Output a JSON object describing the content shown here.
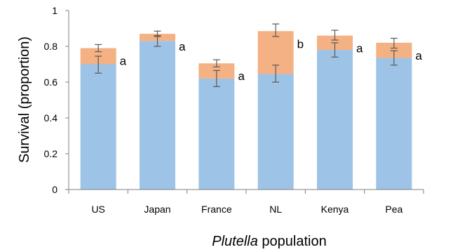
{
  "chart_data": {
    "type": "bar",
    "stacked": true,
    "title": "",
    "xlabel_italic": "Plutella",
    "xlabel_rest": " population",
    "ylabel": "Survival (proportion)",
    "ylim": [
      0,
      1
    ],
    "yticks": [
      "0",
      "0.2",
      "0.4",
      "0.6",
      "0.8",
      "1"
    ],
    "ytick_values": [
      0,
      0.2,
      0.4,
      0.6,
      0.8,
      1
    ],
    "categories": [
      "US",
      "Japan",
      "France",
      "NL",
      "Kenya",
      "Pea"
    ],
    "series": [
      {
        "color": "#9DC3E6",
        "values": [
          0.7,
          0.83,
          0.62,
          0.645,
          0.78,
          0.735
        ]
      },
      {
        "color": "#F4B183",
        "values": [
          0.09,
          0.04,
          0.085,
          0.24,
          0.08,
          0.085
        ]
      }
    ],
    "error_bars": {
      "lower": [
        [
          0.65,
          0.745
        ],
        [
          0.8,
          0.86
        ],
        [
          0.575,
          0.665
        ],
        [
          0.6,
          0.695
        ],
        [
          0.74,
          0.82
        ],
        [
          0.695,
          0.775
        ]
      ],
      "upper": [
        [
          0.77,
          0.81
        ],
        [
          0.855,
          0.885
        ],
        [
          0.685,
          0.725
        ],
        [
          0.855,
          0.925
        ],
        [
          0.835,
          0.89
        ],
        [
          0.79,
          0.845
        ]
      ]
    },
    "significance_letters": [
      "a",
      "a",
      "a",
      "b",
      "a",
      "a"
    ],
    "grid": false,
    "legend": "none"
  }
}
